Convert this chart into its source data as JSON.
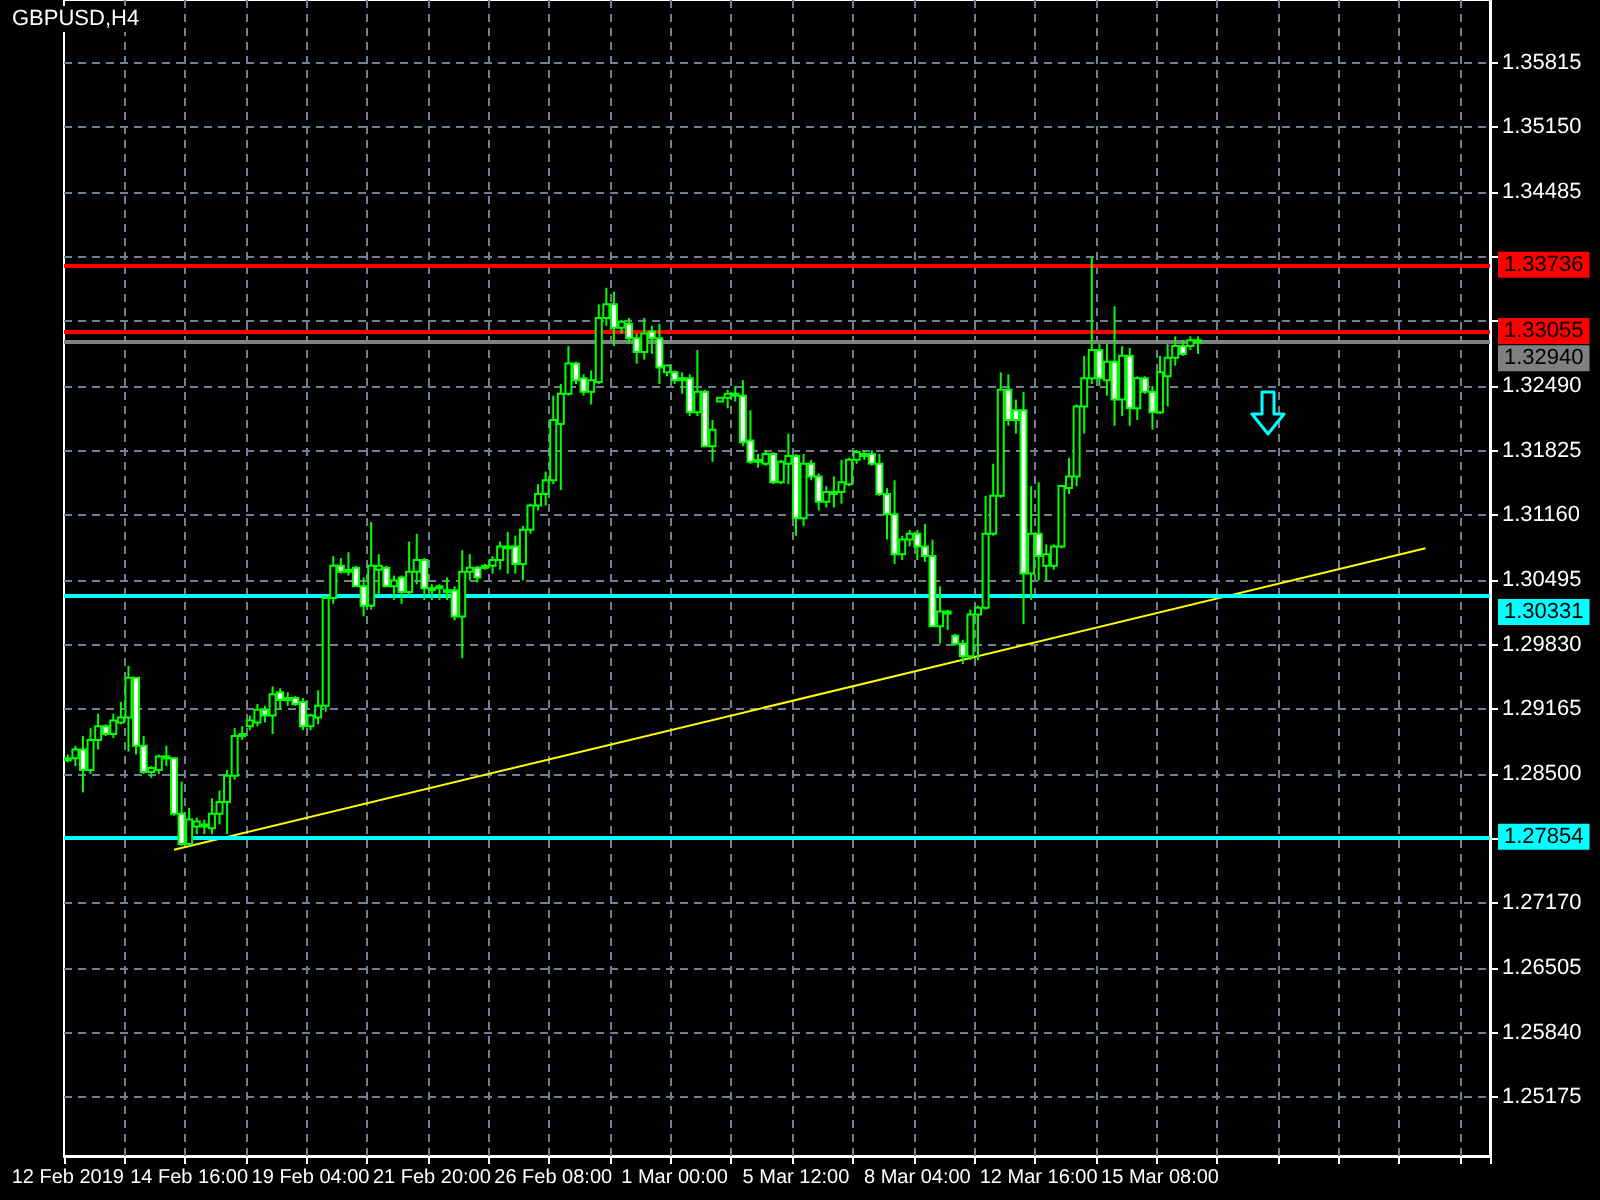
{
  "chart_data": {
    "type": "candlestick",
    "title": "GBPUSD,H4",
    "categories": [
      "12 Feb 2019",
      null,
      null,
      null,
      null,
      null,
      null,
      null,
      null,
      null,
      null,
      null,
      null,
      null,
      null,
      null,
      "14 Feb 16:00",
      null,
      null,
      null,
      null,
      null,
      null,
      null,
      null,
      null,
      null,
      null,
      null,
      null,
      null,
      null,
      "19 Feb 04:00",
      null,
      null,
      null,
      null,
      null,
      null,
      null,
      null,
      null,
      null,
      null,
      null,
      null,
      null,
      null,
      "21 Feb 20:00",
      null,
      null,
      null,
      null,
      null,
      null,
      null,
      null,
      null,
      null,
      null,
      null,
      null,
      null,
      null,
      "26 Feb 08:00",
      null,
      null,
      null,
      null,
      null,
      null,
      null,
      null,
      null,
      null,
      null,
      null,
      null,
      null,
      null,
      "1 Mar 00:00",
      null,
      null,
      null,
      null,
      null,
      null,
      null,
      null,
      null,
      null,
      null,
      null,
      null,
      null,
      null,
      "5 Mar 12:00",
      null,
      null,
      null,
      null,
      null,
      null,
      null,
      null,
      null,
      null,
      null,
      null,
      null,
      null,
      null,
      "8 Mar 04:00",
      null,
      null,
      null,
      null,
      null,
      null,
      null,
      null,
      null,
      null,
      null,
      null,
      null,
      null,
      null,
      "12 Mar 16:00",
      null,
      null,
      null,
      null,
      null,
      null,
      null,
      null,
      null,
      null,
      null,
      null,
      null,
      null,
      null,
      "15 Mar 08:00",
      null,
      null,
      null,
      null,
      null,
      null,
      null,
      null,
      null,
      null,
      null,
      null,
      null,
      null,
      null,
      null,
      null,
      null,
      null,
      null,
      null,
      null,
      null,
      null,
      null,
      null,
      null,
      null,
      null,
      null,
      null,
      null,
      null,
      null,
      null,
      null,
      null,
      null,
      null,
      null,
      null,
      null,
      null
    ],
    "ohlc": [
      [
        1.2866,
        1.287,
        1.2862,
        1.2866
      ],
      [
        1.2866,
        1.2879,
        1.2858,
        1.2875
      ],
      [
        1.2875,
        1.2889,
        1.2831,
        1.2854
      ],
      [
        1.2854,
        1.2897,
        1.285,
        1.2885
      ],
      [
        1.2885,
        1.2912,
        1.2875,
        1.2899
      ],
      [
        1.2899,
        1.2901,
        1.2889,
        1.2891
      ],
      [
        1.2891,
        1.2912,
        1.2887,
        1.2905
      ],
      [
        1.2903,
        1.2924,
        1.2901,
        1.2908
      ],
      [
        1.2908,
        1.2961,
        1.2873,
        1.2949
      ],
      [
        1.2949,
        1.2949,
        1.287,
        1.2879
      ],
      [
        1.2879,
        1.2889,
        1.285,
        1.2852
      ],
      [
        1.2852,
        1.2858,
        1.2846,
        1.2856
      ],
      [
        1.2854,
        1.287,
        1.285,
        1.2868
      ],
      [
        1.2868,
        1.2879,
        1.2858,
        1.2868
      ],
      [
        1.2866,
        1.2866,
        1.2807,
        1.2809
      ],
      [
        1.2809,
        1.2842,
        1.2776,
        1.2778
      ],
      [
        1.2778,
        1.2815,
        1.2776,
        1.2803
      ],
      [
        1.2796,
        1.2805,
        1.2788,
        1.2801
      ],
      [
        1.2796,
        1.2803,
        1.2788,
        1.2798
      ],
      [
        1.2794,
        1.2825,
        1.2788,
        1.2809
      ],
      [
        1.2809,
        1.2833,
        1.2798,
        1.2821
      ],
      [
        1.2821,
        1.2854,
        1.2788,
        1.2848
      ],
      [
        1.2848,
        1.2897,
        1.2844,
        1.2889
      ],
      [
        1.2889,
        1.2899,
        1.2885,
        1.2891
      ],
      [
        1.2899,
        1.291,
        1.2895,
        1.2905
      ],
      [
        1.2903,
        1.2922,
        1.2899,
        1.2916
      ],
      [
        1.2916,
        1.292,
        1.2903,
        1.291
      ],
      [
        1.291,
        1.294,
        1.2891,
        1.2932
      ],
      [
        1.2934,
        1.2938,
        1.2916,
        1.2926
      ],
      [
        1.2928,
        1.2934,
        1.292,
        1.2928
      ],
      [
        1.2928,
        1.293,
        1.292,
        1.2922
      ],
      [
        1.2924,
        1.2928,
        1.2895,
        1.2899
      ],
      [
        1.2899,
        1.2912,
        1.2895,
        1.291
      ],
      [
        1.2908,
        1.2936,
        1.2901,
        1.292
      ],
      [
        1.292,
        1.3033,
        1.2914,
        1.3031
      ],
      [
        1.3031,
        1.3074,
        1.3025,
        1.3064
      ],
      [
        1.3064,
        1.3072,
        1.3056,
        1.3058
      ],
      [
        1.306,
        1.3078,
        1.3054,
        1.306
      ],
      [
        1.3062,
        1.3064,
        1.3043,
        1.3043
      ],
      [
        1.3043,
        1.3052,
        1.3012,
        1.3023
      ],
      [
        1.3023,
        1.3109,
        1.3019,
        1.3064
      ],
      [
        1.306,
        1.3076,
        1.3035,
        1.3064
      ],
      [
        1.3062,
        1.3064,
        1.3043,
        1.3043
      ],
      [
        1.3043,
        1.3054,
        1.3029,
        1.3049
      ],
      [
        1.3052,
        1.3054,
        1.3025,
        1.3037
      ],
      [
        1.3037,
        1.3089,
        1.3033,
        1.3058
      ],
      [
        1.3058,
        1.3097,
        1.3045,
        1.307
      ],
      [
        1.307,
        1.3072,
        1.3029,
        1.3041
      ],
      [
        1.3041,
        1.3045,
        1.3029,
        1.3041
      ],
      [
        1.3041,
        1.3045,
        1.3029,
        1.3043
      ],
      [
        1.3039,
        1.3052,
        1.3029,
        1.3039
      ],
      [
        1.3039,
        1.3043,
        1.3008,
        1.3012
      ],
      [
        1.3012,
        1.308,
        1.2969,
        1.3058
      ],
      [
        1.3058,
        1.3076,
        1.3049,
        1.3062
      ],
      [
        1.3062,
        1.3064,
        1.3047,
        1.3052
      ],
      [
        1.3062,
        1.3066,
        1.306,
        1.3064
      ],
      [
        1.3064,
        1.3074,
        1.3056,
        1.307
      ],
      [
        1.307,
        1.3089,
        1.306,
        1.3084
      ],
      [
        1.3084,
        1.3099,
        1.3056,
        1.3084
      ],
      [
        1.3084,
        1.3095,
        1.3056,
        1.3066
      ],
      [
        1.3066,
        1.3105,
        1.3049,
        1.3101
      ],
      [
        1.3101,
        1.3128,
        1.3097,
        1.3126
      ],
      [
        1.3126,
        1.3148,
        1.3121,
        1.3138
      ],
      [
        1.3138,
        1.3161,
        1.3126,
        1.3152
      ],
      [
        1.3152,
        1.3239,
        1.3148,
        1.3214
      ],
      [
        1.321,
        1.3251,
        1.3142,
        1.3241
      ],
      [
        1.3241,
        1.329,
        1.3239,
        1.3272
      ],
      [
        1.3272,
        1.3274,
        1.3251,
        1.3255
      ],
      [
        1.3257,
        1.3261,
        1.3239,
        1.3243
      ],
      [
        1.3243,
        1.3265,
        1.323,
        1.3255
      ],
      [
        1.3253,
        1.3333,
        1.3251,
        1.3319
      ],
      [
        1.3319,
        1.335,
        1.3311,
        1.3333
      ],
      [
        1.3333,
        1.3346,
        1.329,
        1.3309
      ],
      [
        1.3309,
        1.3317,
        1.3303,
        1.3315
      ],
      [
        1.3313,
        1.3319,
        1.3292,
        1.3298
      ],
      [
        1.3298,
        1.3303,
        1.3272,
        1.3284
      ],
      [
        1.3284,
        1.3319,
        1.3276,
        1.3303
      ],
      [
        1.3305,
        1.3311,
        1.3282,
        1.3298
      ],
      [
        1.3298,
        1.3313,
        1.3251,
        1.3268
      ],
      [
        1.3263,
        1.327,
        1.3259,
        1.327
      ],
      [
        1.3263,
        1.3265,
        1.3251,
        1.3255
      ],
      [
        1.3257,
        1.3263,
        1.3241,
        1.3257
      ],
      [
        1.3257,
        1.3261,
        1.3218,
        1.3222
      ],
      [
        1.3222,
        1.3286,
        1.3218,
        1.3243
      ],
      [
        1.3243,
        1.3245,
        1.3187,
        1.3187
      ],
      [
        1.3187,
        1.3214,
        1.3171,
        1.3204
      ],
      [
        1.3233,
        1.3237,
        1.3233,
        1.3237
      ],
      [
        1.3237,
        1.3245,
        1.3226,
        1.3241
      ],
      [
        1.3241,
        1.3249,
        1.3233,
        1.3241
      ],
      [
        1.3239,
        1.3255,
        1.3187,
        1.3191
      ],
      [
        1.3193,
        1.3224,
        1.3169,
        1.3171
      ],
      [
        1.3173,
        1.3179,
        1.3165,
        1.3173
      ],
      [
        1.3169,
        1.3183,
        1.3167,
        1.3179
      ],
      [
        1.3179,
        1.3181,
        1.3148,
        1.315
      ],
      [
        1.315,
        1.3173,
        1.3148,
        1.3171
      ],
      [
        1.3169,
        1.32,
        1.3148,
        1.3177
      ],
      [
        1.3177,
        1.3179,
        1.3095,
        1.3113
      ],
      [
        1.3113,
        1.3179,
        1.3105,
        1.3169
      ],
      [
        1.3169,
        1.3173,
        1.3152,
        1.3156
      ],
      [
        1.3156,
        1.3159,
        1.3121,
        1.313
      ],
      [
        1.313,
        1.3146,
        1.3124,
        1.314
      ],
      [
        1.314,
        1.3156,
        1.3124,
        1.314
      ],
      [
        1.314,
        1.3173,
        1.3128,
        1.315
      ],
      [
        1.3148,
        1.3175,
        1.3146,
        1.3173
      ],
      [
        1.3173,
        1.3183,
        1.3169,
        1.3181
      ],
      [
        1.3179,
        1.3183,
        1.3173,
        1.3179
      ],
      [
        1.3179,
        1.3183,
        1.3167,
        1.3169
      ],
      [
        1.3169,
        1.3179,
        1.3136,
        1.3138
      ],
      [
        1.3138,
        1.3144,
        1.3091,
        1.3117
      ],
      [
        1.3117,
        1.3152,
        1.3066,
        1.3076
      ],
      [
        1.3076,
        1.3095,
        1.307,
        1.3091
      ],
      [
        1.3091,
        1.3101,
        1.3084,
        1.3097
      ],
      [
        1.3097,
        1.3101,
        1.307,
        1.3084
      ],
      [
        1.3084,
        1.3107,
        1.3068,
        1.3074
      ],
      [
        1.3074,
        1.3091,
        1.3002,
        1.3002
      ],
      [
        1.3002,
        1.3043,
        1.2984,
        1.3017
      ],
      [
        1.3017,
        1.3019,
        1.2998,
        1.3017
      ],
      [
        1.2992,
        1.2994,
        1.2982,
        1.2984
      ],
      [
        1.2984,
        1.2988,
        1.2963,
        1.2971
      ],
      [
        1.2971,
        1.3019,
        1.2967,
        1.3014
      ],
      [
        1.3014,
        1.3023,
        1.2967,
        1.3021
      ],
      [
        1.3021,
        1.3136,
        1.3019,
        1.3097
      ],
      [
        1.3097,
        1.3169,
        1.3095,
        1.3136
      ],
      [
        1.3136,
        1.3263,
        1.3134,
        1.3245
      ],
      [
        1.3245,
        1.3261,
        1.3208,
        1.3214
      ],
      [
        1.3224,
        1.3235,
        1.32,
        1.3214
      ],
      [
        1.3224,
        1.3243,
        1.3004,
        1.3056
      ],
      [
        1.3056,
        1.3146,
        1.3029,
        1.3097
      ],
      [
        1.3097,
        1.315,
        1.3049,
        1.3074
      ],
      [
        1.3064,
        1.3086,
        1.3049,
        1.3076
      ],
      [
        1.3064,
        1.3086,
        1.306,
        1.3084
      ],
      [
        1.3084,
        1.3146,
        1.3082,
        1.3146
      ],
      [
        1.3144,
        1.3175,
        1.3138,
        1.3156
      ],
      [
        1.3156,
        1.323,
        1.3146,
        1.3228
      ],
      [
        1.3228,
        1.328,
        1.32,
        1.3257
      ],
      [
        1.3257,
        1.3381,
        1.3251,
        1.3286
      ],
      [
        1.3286,
        1.3292,
        1.3249,
        1.3257
      ],
      [
        1.3255,
        1.3292,
        1.3239,
        1.3274
      ],
      [
        1.3274,
        1.3331,
        1.3208,
        1.3235
      ],
      [
        1.3235,
        1.329,
        1.3218,
        1.328
      ],
      [
        1.328,
        1.3288,
        1.3208,
        1.3226
      ],
      [
        1.3226,
        1.3259,
        1.3214,
        1.3257
      ],
      [
        1.3257,
        1.3259,
        1.3241,
        1.3243
      ],
      [
        1.3243,
        1.3249,
        1.3204,
        1.3222
      ],
      [
        1.3222,
        1.328,
        1.322,
        1.3263
      ],
      [
        1.3259,
        1.3292,
        1.3228,
        1.3278
      ],
      [
        1.3278,
        1.33,
        1.327,
        1.329
      ],
      [
        1.329,
        1.3296,
        1.328,
        1.3282
      ],
      [
        1.329,
        1.33,
        1.3286,
        1.3296
      ],
      [
        1.3296,
        1.33,
        1.3282,
        1.3294
      ],
      null,
      null,
      null,
      null,
      null,
      null,
      null,
      null,
      null,
      null,
      null,
      null,
      null,
      null,
      null,
      null,
      null,
      null,
      null,
      null,
      null,
      null,
      null,
      null,
      null,
      null,
      null,
      null,
      null,
      null,
      null,
      null,
      null,
      null,
      null,
      null,
      null,
      null
    ],
    "color": "#00ff00",
    "series": [
      {
        "type": "line",
        "color": "#ffff00",
        "values": [
          null,
          null,
          null,
          null,
          null,
          null,
          null,
          null,
          null,
          null,
          null,
          null,
          null,
          null,
          1.2772,
          null,
          null,
          null,
          null,
          null,
          null,
          null,
          null,
          null,
          null,
          null,
          null,
          null,
          null,
          null,
          null,
          null,
          null,
          null,
          null,
          null,
          null,
          null,
          null,
          null,
          null,
          null,
          null,
          null,
          null,
          null,
          null,
          null,
          null,
          null,
          null,
          null,
          null,
          null,
          null,
          null,
          null,
          null,
          null,
          null,
          null,
          null,
          null,
          null,
          null,
          null,
          null,
          null,
          null,
          null,
          null,
          null,
          null,
          null,
          null,
          null,
          null,
          null,
          null,
          null,
          null,
          null,
          null,
          null,
          null,
          null,
          null,
          null,
          null,
          null,
          null,
          null,
          null,
          null,
          null,
          null,
          null,
          null,
          null,
          null,
          null,
          null,
          null,
          null,
          null,
          null,
          null,
          null,
          null,
          null,
          null,
          null,
          null,
          null,
          null,
          null,
          null,
          null,
          null,
          null,
          null,
          null,
          null,
          null,
          null,
          null,
          null,
          null,
          null,
          null,
          null,
          null,
          null,
          null,
          null,
          null,
          null,
          null,
          null,
          null,
          null,
          null,
          null,
          null,
          null,
          null,
          null,
          null,
          null,
          null,
          null,
          null,
          null,
          null,
          null,
          null,
          null,
          null,
          null,
          null,
          null,
          null,
          null,
          null,
          null,
          null,
          null,
          null,
          null,
          null,
          null,
          null,
          null,
          null,
          null,
          null,
          null,
          null,
          null,
          1.3082,
          null,
          null,
          null,
          null,
          null,
          null,
          null,
          null
        ]
      }
    ],
    "ylim": [
      1.2457,
      1.3646
    ],
    "yticks": [
      {
        "value": 1.25175,
        "label": "1.25175"
      },
      {
        "value": 1.2584,
        "label": "1.25840"
      },
      {
        "value": 1.26505,
        "label": "1.26505"
      },
      {
        "value": 1.2717,
        "label": "1.27170"
      },
      {
        "value": 1.27835,
        "label": null
      },
      {
        "value": 1.285,
        "label": "1.28500"
      },
      {
        "value": 1.29165,
        "label": "1.29165"
      },
      {
        "value": 1.2983,
        "label": "1.29830"
      },
      {
        "value": 1.30495,
        "label": "1.30495"
      },
      {
        "value": 1.3116,
        "label": "1.31160"
      },
      {
        "value": 1.31825,
        "label": "1.31825"
      },
      {
        "value": 1.3249,
        "label": "1.32490"
      },
      {
        "value": 1.33155,
        "label": null
      },
      {
        "value": 1.3382,
        "label": null
      },
      {
        "value": 1.34485,
        "label": "1.34485"
      },
      {
        "value": 1.3515,
        "label": "1.35150"
      },
      {
        "value": 1.35815,
        "label": "1.35815"
      }
    ],
    "grid": true,
    "ref_lines": [
      {
        "axis": "y",
        "value": 1.33736,
        "label": "1.33736",
        "color": "#ff0000"
      },
      {
        "axis": "y",
        "value": 1.33055,
        "label": "1.33055",
        "color": "#ff0000"
      },
      {
        "axis": "y",
        "value": 1.3294,
        "label": "1.32940",
        "color": "#808080"
      },
      {
        "axis": "y",
        "value": 1.30331,
        "label": "1.30331",
        "color": "#00ffff"
      },
      {
        "axis": "y",
        "value": 1.27854,
        "label": "1.27854",
        "color": "#00ffff"
      }
    ]
  }
}
